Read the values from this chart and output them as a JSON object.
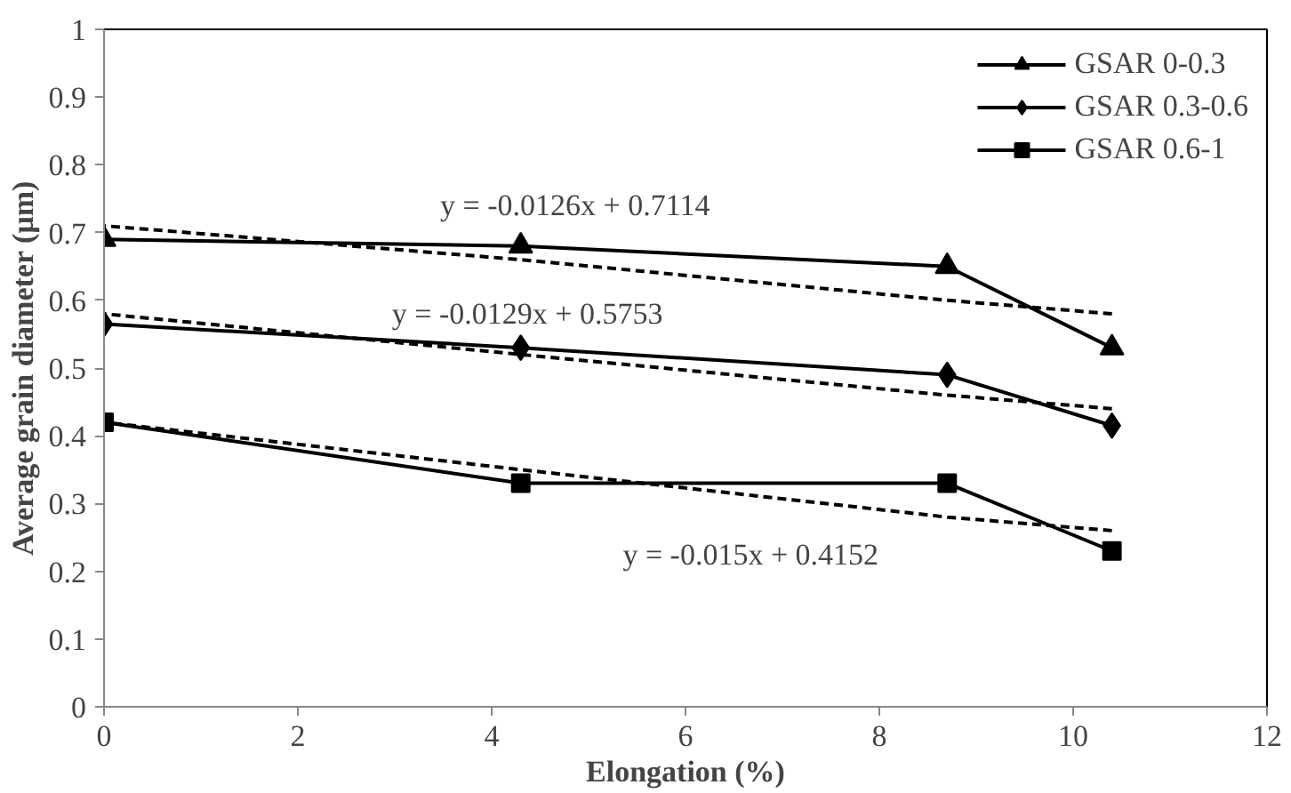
{
  "chart_data": {
    "type": "line",
    "xlabel": "Elongation (%)",
    "ylabel": "Average grain diameter (µm)",
    "xlim": [
      0,
      12
    ],
    "ylim": [
      0,
      1
    ],
    "xticks": [
      0,
      2,
      4,
      6,
      8,
      10,
      12
    ],
    "yticks": [
      0,
      0.1,
      0.2,
      0.3,
      0.4,
      0.5,
      0.6,
      0.7,
      0.8,
      0.9,
      1
    ],
    "grid": false,
    "legend": "top right",
    "x": [
      0,
      4.3,
      8.7,
      10.4
    ],
    "series": [
      {
        "name": "GSAR 0-0.3",
        "color": "#000000",
        "marker": "triangle",
        "line_style": "solid",
        "values": [
          0.69,
          0.68,
          0.65,
          0.53
        ]
      },
      {
        "name": "GSAR 0.3-0.6",
        "color": "#000000",
        "marker": "diamond",
        "line_style": "solid",
        "values": [
          0.565,
          0.53,
          0.49,
          0.415
        ]
      },
      {
        "name": "GSAR 0.6-1",
        "color": "#000000",
        "marker": "square",
        "line_style": "solid",
        "values": [
          0.42,
          0.33,
          0.33,
          0.23
        ]
      },
      {
        "type": "line",
        "color": "#000000",
        "marker": "none",
        "line_style": "dashed",
        "values": [
          0.71,
          0.66,
          0.6,
          0.58
        ]
      },
      {
        "type": "line",
        "color": "#000000",
        "marker": "none",
        "line_style": "dashed",
        "values": [
          0.58,
          0.52,
          0.46,
          0.44
        ]
      },
      {
        "type": "line",
        "color": "#000000",
        "marker": "none",
        "line_style": "dashed",
        "values": [
          0.42,
          0.35,
          0.28,
          0.26
        ]
      }
    ],
    "annotations": [
      "y = -0.0126x + 0.7114",
      "y = -0.0129x + 0.5753",
      "y = -0.015x + 0.4152"
    ]
  }
}
